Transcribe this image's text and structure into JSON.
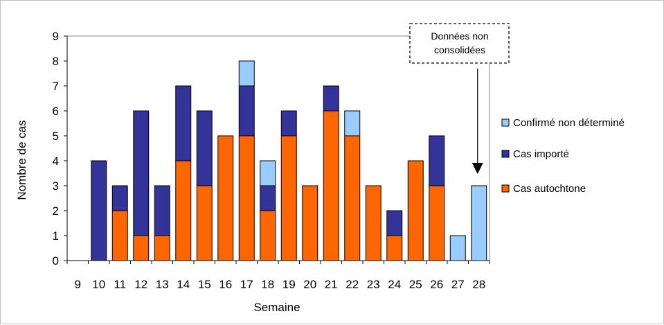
{
  "chart_data": {
    "type": "bar",
    "stacked": true,
    "xlabel": "Semaine",
    "ylabel": "Nombre de cas",
    "ylim": [
      0,
      9
    ],
    "yticks": [
      0,
      1,
      2,
      3,
      4,
      5,
      6,
      7,
      8,
      9
    ],
    "categories": [
      "9",
      "10",
      "11",
      "12",
      "13",
      "14",
      "15",
      "16",
      "17",
      "18",
      "19",
      "20",
      "21",
      "22",
      "23",
      "24",
      "25",
      "26",
      "27",
      "28"
    ],
    "series": [
      {
        "name": "Cas autochtone",
        "color": "#ff6600",
        "values": [
          0,
          0,
          2,
          1,
          1,
          4,
          3,
          5,
          5,
          2,
          5,
          3,
          6,
          5,
          3,
          1,
          4,
          3,
          0,
          0
        ]
      },
      {
        "name": "Cas importé",
        "color": "#333399",
        "values": [
          0,
          4,
          1,
          5,
          2,
          3,
          3,
          0,
          2,
          1,
          1,
          0,
          1,
          0,
          0,
          1,
          0,
          2,
          0,
          0
        ]
      },
      {
        "name": "Confirmé non déterminé",
        "color": "#99ccff",
        "values": [
          0,
          0,
          0,
          0,
          0,
          0,
          0,
          0,
          1,
          1,
          0,
          0,
          0,
          1,
          0,
          0,
          0,
          0,
          1,
          3
        ]
      }
    ],
    "legend_order": [
      "Confirmé non déterminé",
      "Cas importé",
      "Cas autochtone"
    ],
    "legend_position": "right",
    "grid": false,
    "annotation": {
      "lines": [
        "Données non",
        "consolidées"
      ],
      "points_to": "28"
    }
  }
}
